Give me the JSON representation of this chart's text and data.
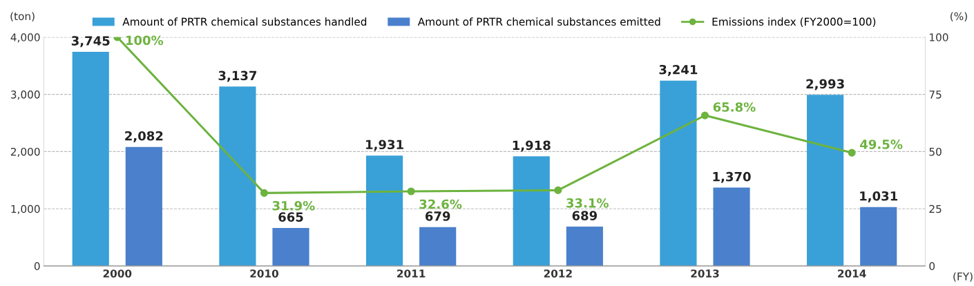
{
  "chart_data": {
    "type": "bar",
    "categories": [
      "2000",
      "2010",
      "2011",
      "2012",
      "2013",
      "2014"
    ],
    "series": [
      {
        "name": "Amount of PRTR chemical substances handled",
        "color": "#3aa0d8",
        "values": [
          3745,
          3137,
          1931,
          1918,
          3241,
          2993
        ],
        "value_labels": [
          "3,745",
          "3,137",
          "1,931",
          "1,918",
          "3,241",
          "2,993"
        ]
      },
      {
        "name": "Amount of PRTR chemical substances emitted",
        "color": "#4a80cc",
        "values": [
          2082,
          665,
          679,
          689,
          1370,
          1031
        ],
        "value_labels": [
          "2,082",
          "665",
          "679",
          "689",
          "1,370",
          "1,031"
        ]
      },
      {
        "name": "Emissions index (FY2000=100)",
        "type": "line",
        "axis": "y2",
        "marker": "circle",
        "color": "#6db33f",
        "values": [
          100,
          31.9,
          32.6,
          33.1,
          65.8,
          49.5
        ],
        "value_labels": [
          "100%",
          "31.9%",
          "32.6%",
          "33.1%",
          "65.8%",
          "49.5%"
        ]
      }
    ],
    "ylabel": "(ton)",
    "y2label": "(%)",
    "xlabel": "(FY)",
    "ylim": [
      0,
      4000
    ],
    "yticks": [
      0,
      {
        "value": 1000,
        "label": "1,000"
      },
      {
        "value": 2000,
        "label": "2,000"
      },
      {
        "value": 3000,
        "label": "3,000"
      },
      {
        "value": 4000,
        "label": "4,000"
      }
    ],
    "y2lim": [
      0,
      100
    ],
    "y2ticks": [
      0,
      25,
      50,
      75,
      100
    ],
    "grid": "y",
    "legend": "top"
  }
}
